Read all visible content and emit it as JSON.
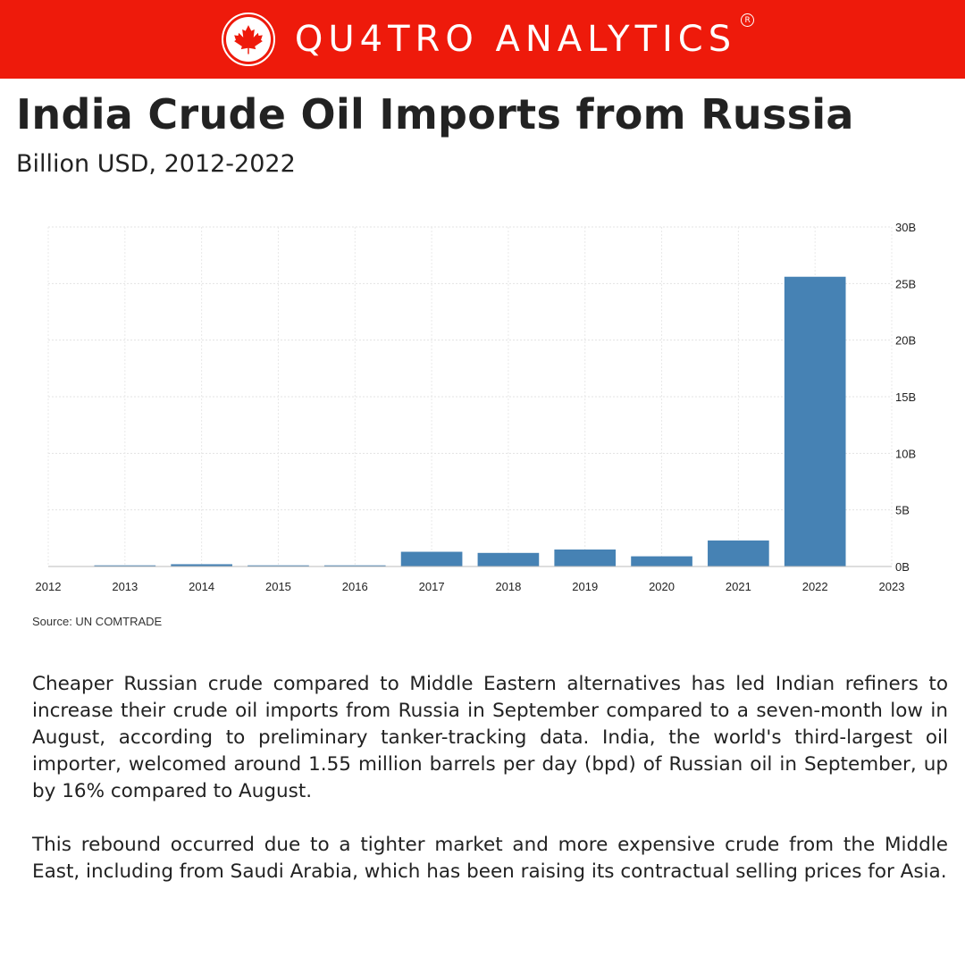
{
  "header": {
    "brand": "QU4TRO ANALYTICS",
    "registered": "R",
    "logo_icon": "maple-leaf-icon",
    "accent_color": "#ee1a0b"
  },
  "title": "India Crude Oil Imports from Russia",
  "subtitle": "Billion USD, 2012-2022",
  "chart_data": {
    "type": "bar",
    "x_ticks": [
      "2012",
      "2013",
      "2014",
      "2015",
      "2016",
      "2017",
      "2018",
      "2019",
      "2020",
      "2021",
      "2022",
      "2023"
    ],
    "categories": [
      "2013",
      "2014",
      "2015",
      "2016",
      "2017",
      "2018",
      "2019",
      "2020",
      "2021",
      "2022"
    ],
    "values": [
      0.1,
      0.2,
      0.1,
      0.1,
      1.3,
      1.2,
      1.5,
      0.9,
      2.3,
      25.6
    ],
    "xlim": [
      2012,
      2023
    ],
    "ylim": [
      0,
      30
    ],
    "y_ticks": [
      0,
      5,
      10,
      15,
      20,
      25,
      30
    ],
    "y_tick_labels": [
      "0B",
      "5B",
      "10B",
      "15B",
      "20B",
      "25B",
      "30B"
    ],
    "y_axis_side": "right",
    "grid": true,
    "bar_color": "#4682b4"
  },
  "source": "Source: UN COMTRADE",
  "paragraphs": [
    "Cheaper Russian crude compared to Middle Eastern alternatives has led Indian refiners to increase their crude oil imports from Russia in September compared to a seven-month low in August, according to preliminary tanker-tracking data. India, the world's third-largest oil importer, welcomed around 1.55 million barrels per day (bpd) of Russian oil in September, up by 16% compared to August.",
    "This rebound occurred due to a tighter market and more expensive crude from the Middle East, including from Saudi Arabia, which has been raising its contractual selling prices for Asia."
  ]
}
